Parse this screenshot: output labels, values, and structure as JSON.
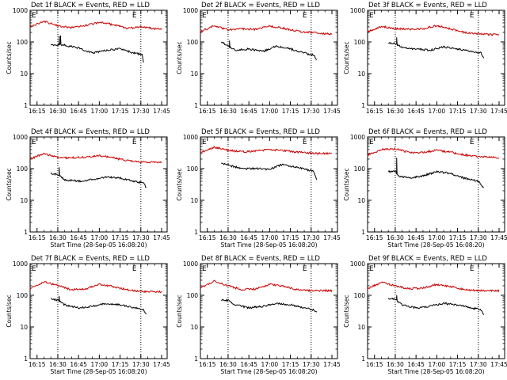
{
  "chart_data": [
    {
      "type": "line",
      "title": "Det 1f  BLACK = Events, RED = LLD",
      "xlabel": "",
      "ylabel": "Counts/sec",
      "scale": "log",
      "ylim": [
        1,
        1000
      ],
      "xticks": [
        "16:15",
        "16:30",
        "16:45",
        "17:00",
        "17:15",
        "17:30",
        "17:45"
      ],
      "yticks": [
        "1",
        "10",
        "100",
        "1000"
      ],
      "markers": [
        "16:30",
        "17:30"
      ],
      "series": [
        {
          "name": "Events",
          "color": "#000000",
          "x": [
            "16:25",
            "16:30",
            "16:31",
            "16:45",
            "16:55",
            "17:05",
            "17:15",
            "17:25",
            "17:31",
            "17:32"
          ],
          "y": [
            82,
            80,
            85,
            65,
            45,
            55,
            60,
            45,
            40,
            22
          ],
          "spikes": [
            {
              "x": "16:31",
              "y": 155
            },
            {
              "x": "16:32",
              "y": 160
            }
          ]
        },
        {
          "name": "LLD",
          "color": "#cc0000",
          "x": [
            "16:10",
            "16:20",
            "16:30",
            "16:40",
            "16:50",
            "17:00",
            "17:10",
            "17:20",
            "17:30",
            "17:40",
            "17:45"
          ],
          "y": [
            300,
            450,
            320,
            280,
            330,
            420,
            350,
            270,
            300,
            260,
            260
          ]
        }
      ]
    },
    {
      "type": "line",
      "title": "Det 2f  BLACK = Events, RED = LLD",
      "xlabel": "",
      "ylabel": "Counts/sec",
      "scale": "log",
      "ylim": [
        1,
        1000
      ],
      "xticks": [
        "16:15",
        "16:30",
        "16:45",
        "17:00",
        "17:15",
        "17:30",
        "17:45"
      ],
      "yticks": [
        "1",
        "10",
        "100",
        "1000"
      ],
      "markers": [
        "16:30",
        "17:30"
      ],
      "series": [
        {
          "name": "Events",
          "color": "#000000",
          "x": [
            "16:25",
            "16:30",
            "16:35",
            "16:45",
            "16:55",
            "17:05",
            "17:15",
            "17:25",
            "17:32",
            "17:34"
          ],
          "y": [
            100,
            75,
            55,
            60,
            50,
            75,
            60,
            45,
            38,
            28
          ],
          "spikes": [
            {
              "x": "16:31",
              "y": 110
            }
          ]
        },
        {
          "name": "LLD",
          "color": "#cc0000",
          "x": [
            "16:10",
            "16:20",
            "16:30",
            "16:40",
            "16:50",
            "17:00",
            "17:10",
            "17:20",
            "17:30",
            "17:40",
            "17:45"
          ],
          "y": [
            210,
            330,
            240,
            260,
            250,
            320,
            270,
            220,
            200,
            180,
            180
          ]
        }
      ]
    },
    {
      "type": "line",
      "title": "Det 3f  BLACK = Events, RED = LLD",
      "xlabel": "",
      "ylabel": "Counts/sec",
      "scale": "log",
      "ylim": [
        1,
        1000
      ],
      "xticks": [
        "16:15",
        "16:30",
        "16:45",
        "17:00",
        "17:15",
        "17:30",
        "17:45"
      ],
      "yticks": [
        "1",
        "10",
        "100",
        "1000"
      ],
      "markers": [
        "16:30",
        "17:30"
      ],
      "series": [
        {
          "name": "Events",
          "color": "#000000",
          "x": [
            "16:25",
            "16:30",
            "16:35",
            "16:45",
            "16:55",
            "17:05",
            "17:15",
            "17:25",
            "17:32",
            "17:34"
          ],
          "y": [
            95,
            90,
            65,
            60,
            55,
            70,
            60,
            50,
            45,
            30
          ],
          "spikes": [
            {
              "x": "16:31",
              "y": 140
            }
          ]
        },
        {
          "name": "LLD",
          "color": "#cc0000",
          "x": [
            "16:10",
            "16:20",
            "16:30",
            "16:40",
            "16:50",
            "17:00",
            "17:10",
            "17:20",
            "17:30",
            "17:40",
            "17:45"
          ],
          "y": [
            210,
            310,
            260,
            250,
            260,
            330,
            260,
            200,
            180,
            170,
            170
          ]
        }
      ]
    },
    {
      "type": "line",
      "title": "Det 4f  BLACK = Events, RED = LLD",
      "xlabel": "",
      "ylabel": "Counts/sec",
      "scale": "log",
      "ylim": [
        1,
        1000
      ],
      "xticks": [
        "16:15",
        "16:30",
        "16:45",
        "17:00",
        "17:15",
        "17:30",
        "17:45"
      ],
      "yticks": [
        "1",
        "10",
        "100",
        "1000"
      ],
      "markers": [
        "16:30",
        "17:30"
      ],
      "series": [
        {
          "name": "Events",
          "color": "#000000",
          "x": [
            "16:25",
            "16:30",
            "16:35",
            "16:45",
            "16:55",
            "17:05",
            "17:15",
            "17:25",
            "17:32",
            "17:34"
          ],
          "y": [
            70,
            65,
            45,
            40,
            45,
            55,
            50,
            40,
            35,
            25
          ],
          "spikes": [
            {
              "x": "16:31",
              "y": 110
            }
          ]
        },
        {
          "name": "LLD",
          "color": "#cc0000",
          "x": [
            "16:10",
            "16:20",
            "16:30",
            "16:40",
            "16:50",
            "17:00",
            "17:10",
            "17:20",
            "17:30",
            "17:40",
            "17:45"
          ],
          "y": [
            200,
            300,
            220,
            220,
            230,
            260,
            220,
            180,
            160,
            160,
            160
          ]
        }
      ]
    },
    {
      "type": "line",
      "title": "Det 5f  BLACK = Events, RED = LLD",
      "xlabel": "",
      "ylabel": "Counts/sec",
      "scale": "log",
      "ylim": [
        1,
        1000
      ],
      "xticks": [
        "16:15",
        "16:30",
        "16:45",
        "17:00",
        "17:15",
        "17:30",
        "17:45"
      ],
      "yticks": [
        "1",
        "10",
        "100",
        "1000"
      ],
      "markers": [
        "16:30",
        "17:30"
      ],
      "series": [
        {
          "name": "Events",
          "color": "#000000",
          "x": [
            "16:25",
            "16:30",
            "16:40",
            "16:50",
            "17:00",
            "17:10",
            "17:15",
            "17:25",
            "17:32",
            "17:34"
          ],
          "y": [
            150,
            130,
            100,
            100,
            95,
            140,
            120,
            100,
            80,
            45
          ],
          "spikes": []
        },
        {
          "name": "LLD",
          "color": "#cc0000",
          "x": [
            "16:10",
            "16:20",
            "16:30",
            "16:40",
            "16:50",
            "17:00",
            "17:10",
            "17:20",
            "17:30",
            "17:40",
            "17:45"
          ],
          "y": [
            320,
            480,
            380,
            340,
            360,
            400,
            370,
            330,
            310,
            300,
            300
          ]
        }
      ]
    },
    {
      "type": "line",
      "title": "Det 6f  BLACK = Events, RED = LLD",
      "xlabel": "",
      "ylabel": "Counts/sec",
      "scale": "log",
      "ylim": [
        1,
        1000
      ],
      "xticks": [
        "16:15",
        "16:30",
        "16:45",
        "17:00",
        "17:15",
        "17:30",
        "17:45"
      ],
      "yticks": [
        "1",
        "10",
        "100",
        "1000"
      ],
      "markers": [
        "16:30",
        "17:30"
      ],
      "series": [
        {
          "name": "Events",
          "color": "#000000",
          "x": [
            "16:25",
            "16:30",
            "16:32",
            "16:40",
            "16:50",
            "17:00",
            "17:10",
            "17:20",
            "17:30",
            "17:34"
          ],
          "y": [
            80,
            85,
            60,
            50,
            60,
            80,
            70,
            50,
            40,
            25
          ],
          "spikes": [
            {
              "x": "16:31",
              "y": 220
            }
          ]
        },
        {
          "name": "LLD",
          "color": "#cc0000",
          "x": [
            "16:10",
            "16:20",
            "16:30",
            "16:40",
            "16:50",
            "17:00",
            "17:10",
            "17:20",
            "17:30",
            "17:40",
            "17:45"
          ],
          "y": [
            270,
            400,
            420,
            320,
            320,
            380,
            330,
            270,
            240,
            230,
            220
          ]
        }
      ]
    },
    {
      "type": "line",
      "title": "Det 7f  BLACK = Events, RED = LLD",
      "xlabel": "",
      "ylabel": "Counts/sec",
      "scale": "log",
      "ylim": [
        1,
        1000
      ],
      "xticks": [
        "16:15",
        "16:30",
        "16:45",
        "17:00",
        "17:15",
        "17:30",
        "17:45"
      ],
      "yticks": [
        "1",
        "10",
        "100",
        "1000"
      ],
      "markers": [
        "16:30",
        "17:30"
      ],
      "series": [
        {
          "name": "Events",
          "color": "#000000",
          "x": [
            "16:25",
            "16:30",
            "16:35",
            "16:45",
            "16:55",
            "17:05",
            "17:15",
            "17:25",
            "17:32",
            "17:34"
          ],
          "y": [
            75,
            70,
            50,
            40,
            45,
            55,
            50,
            40,
            35,
            25
          ],
          "spikes": [
            {
              "x": "16:31",
              "y": 95
            }
          ]
        },
        {
          "name": "LLD",
          "color": "#cc0000",
          "x": [
            "16:10",
            "16:20",
            "16:30",
            "16:40",
            "16:50",
            "17:00",
            "17:10",
            "17:20",
            "17:30",
            "17:40",
            "17:45"
          ],
          "y": [
            160,
            270,
            200,
            150,
            160,
            220,
            190,
            150,
            130,
            130,
            130
          ]
        }
      ]
    },
    {
      "type": "line",
      "title": "Det 8f  BLACK = Events, RED = LLD",
      "xlabel": "",
      "ylabel": "Counts/sec",
      "scale": "log",
      "ylim": [
        1,
        1000
      ],
      "xticks": [
        "16:15",
        "16:30",
        "16:45",
        "17:00",
        "17:15",
        "17:30",
        "17:45"
      ],
      "yticks": [
        "1",
        "10",
        "100",
        "1000"
      ],
      "markers": [
        "16:30",
        "17:30"
      ],
      "series": [
        {
          "name": "Events",
          "color": "#000000",
          "x": [
            "16:25",
            "16:30",
            "16:35",
            "16:45",
            "16:55",
            "17:05",
            "17:15",
            "17:25",
            "17:32",
            "17:34"
          ],
          "y": [
            70,
            70,
            50,
            40,
            45,
            55,
            50,
            40,
            35,
            28
          ],
          "spikes": []
        },
        {
          "name": "LLD",
          "color": "#cc0000",
          "x": [
            "16:10",
            "16:20",
            "16:30",
            "16:40",
            "16:50",
            "17:00",
            "17:10",
            "17:20",
            "17:30",
            "17:40",
            "17:45"
          ],
          "y": [
            170,
            280,
            200,
            150,
            160,
            220,
            190,
            150,
            140,
            140,
            140
          ]
        }
      ]
    },
    {
      "type": "line",
      "title": "Det 9f  BLACK = Events, RED = LLD",
      "xlabel": "",
      "ylabel": "Counts/sec",
      "scale": "log",
      "ylim": [
        1,
        1000
      ],
      "xticks": [
        "16:15",
        "16:30",
        "16:45",
        "17:00",
        "17:15",
        "17:30",
        "17:45"
      ],
      "yticks": [
        "1",
        "10",
        "100",
        "1000"
      ],
      "markers": [
        "16:30",
        "17:30"
      ],
      "series": [
        {
          "name": "Events",
          "color": "#000000",
          "x": [
            "16:25",
            "16:30",
            "16:35",
            "16:45",
            "16:55",
            "17:05",
            "17:15",
            "17:25",
            "17:32",
            "17:34"
          ],
          "y": [
            80,
            75,
            50,
            40,
            45,
            55,
            50,
            40,
            35,
            25
          ],
          "spikes": [
            {
              "x": "16:31",
              "y": 100
            }
          ]
        },
        {
          "name": "LLD",
          "color": "#cc0000",
          "x": [
            "16:10",
            "16:20",
            "16:30",
            "16:40",
            "16:50",
            "17:00",
            "17:10",
            "17:20",
            "17:30",
            "17:40",
            "17:45"
          ],
          "y": [
            160,
            260,
            200,
            160,
            170,
            220,
            190,
            150,
            140,
            140,
            140
          ]
        }
      ]
    }
  ],
  "panels": [
    {
      "title": "Det 1f  BLACK = Events, RED = LLD",
      "corner_left": "E",
      "corner_right": "E",
      "ylabel": "Counts/sec",
      "xlabel": ""
    },
    {
      "title": "Det 2f  BLACK = Events, RED = LLD",
      "corner_left": "E",
      "corner_right": "E",
      "ylabel": "Counts/sec",
      "xlabel": ""
    },
    {
      "title": "Det 3f  BLACK = Events, RED = LLD",
      "corner_left": "E",
      "corner_right": "E",
      "ylabel": "Counts/sec",
      "xlabel": ""
    },
    {
      "title": "Det 4f  BLACK = Events, RED = LLD",
      "corner_left": "E",
      "corner_right": "E",
      "ylabel": "Counts/sec",
      "xlabel": "Start Time (28-Sep-05 16:08:20)"
    },
    {
      "title": "Det 5f  BLACK = Events, RED = LLD",
      "corner_left": "E",
      "corner_right": "E",
      "ylabel": "Counts/sec",
      "xlabel": "Start Time (28-Sep-05 16:08:20)"
    },
    {
      "title": "Det 6f  BLACK = Events, RED = LLD",
      "corner_left": "E",
      "corner_right": "E",
      "ylabel": "Counts/sec",
      "xlabel": "Start Time (28-Sep-05 16:08:20)"
    },
    {
      "title": "Det 7f  BLACK = Events, RED = LLD",
      "corner_left": "E",
      "corner_right": "E",
      "ylabel": "Counts/sec",
      "xlabel": "Start Time (28-Sep-05 16:08:20)"
    },
    {
      "title": "Det 8f  BLACK = Events, RED = LLD",
      "corner_left": "E",
      "corner_right": "E",
      "ylabel": "Counts/sec",
      "xlabel": "Start Time (28-Sep-05 16:08:20)"
    },
    {
      "title": "Det 9f  BLACK = Events, RED = LLD",
      "corner_left": "E",
      "corner_right": "E",
      "ylabel": "Counts/sec",
      "xlabel": "Start Time (28-Sep-05 16:08:20)"
    }
  ],
  "colors": {
    "events": "#000000",
    "lld": "#cc0000",
    "axes": "#000000",
    "background": "#ffffff"
  }
}
